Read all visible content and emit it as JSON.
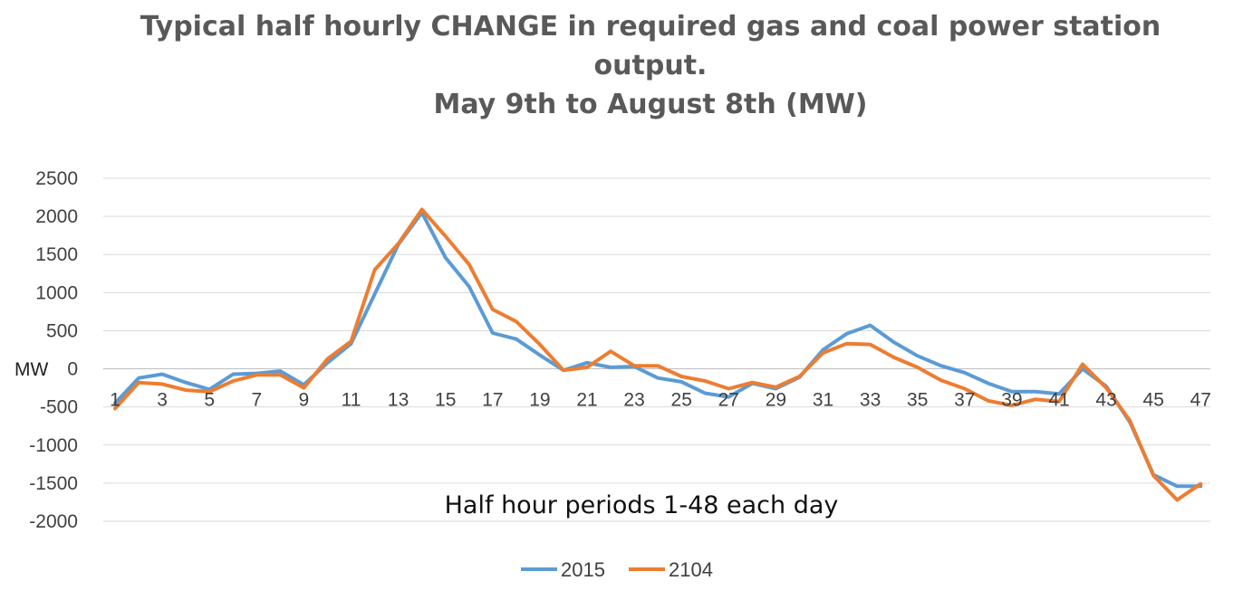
{
  "chart_data": {
    "type": "line",
    "title_lines": [
      "Typical half hourly CHANGE in required gas and coal power station",
      "output.",
      "May 9th to August 8th (MW)"
    ],
    "xlabel": "Half hour periods 1-48 each day",
    "ylabel": "MW",
    "ylim": [
      -2000,
      2500
    ],
    "y_ticks": [
      2500,
      2000,
      1500,
      1000,
      500,
      0,
      -500,
      -1000,
      -1500,
      -2000
    ],
    "x": [
      1,
      2,
      3,
      4,
      5,
      6,
      7,
      8,
      9,
      10,
      11,
      12,
      13,
      14,
      15,
      16,
      17,
      18,
      19,
      20,
      21,
      22,
      23,
      24,
      25,
      26,
      27,
      28,
      29,
      30,
      31,
      32,
      33,
      34,
      35,
      36,
      37,
      38,
      39,
      40,
      41,
      42,
      43,
      44,
      45,
      46,
      47,
      48
    ],
    "x_tick_labels": [
      1,
      3,
      5,
      7,
      9,
      11,
      13,
      15,
      17,
      19,
      21,
      23,
      25,
      27,
      29,
      31,
      33,
      35,
      37,
      39,
      41,
      43,
      45,
      47
    ],
    "grid": true,
    "legend_position": "bottom",
    "series": [
      {
        "name": "2015",
        "color": "#5b9bd5",
        "values": [
          -450,
          -120,
          -70,
          -180,
          -270,
          -70,
          -60,
          -30,
          -210,
          80,
          330,
          980,
          1630,
          2050,
          1460,
          1080,
          470,
          390,
          180,
          -20,
          80,
          20,
          30,
          -120,
          -170,
          -320,
          -370,
          -190,
          -260,
          -110,
          250,
          460,
          570,
          350,
          170,
          40,
          -50,
          -190,
          -300,
          -300,
          -330,
          0,
          -230,
          -700,
          -1390,
          -1540,
          -1540,
          null
        ]
      },
      {
        "name": "2104",
        "color": "#ed7d31",
        "values": [
          -520,
          -180,
          -200,
          -280,
          -300,
          -160,
          -80,
          -80,
          -250,
          130,
          360,
          1300,
          1640,
          2090,
          1740,
          1370,
          780,
          620,
          320,
          -20,
          20,
          230,
          40,
          40,
          -100,
          -160,
          -260,
          -180,
          -240,
          -100,
          210,
          330,
          320,
          150,
          20,
          -150,
          -260,
          -420,
          -480,
          -400,
          -430,
          60,
          -250,
          -680,
          -1400,
          -1720,
          -1510,
          null
        ]
      }
    ]
  }
}
